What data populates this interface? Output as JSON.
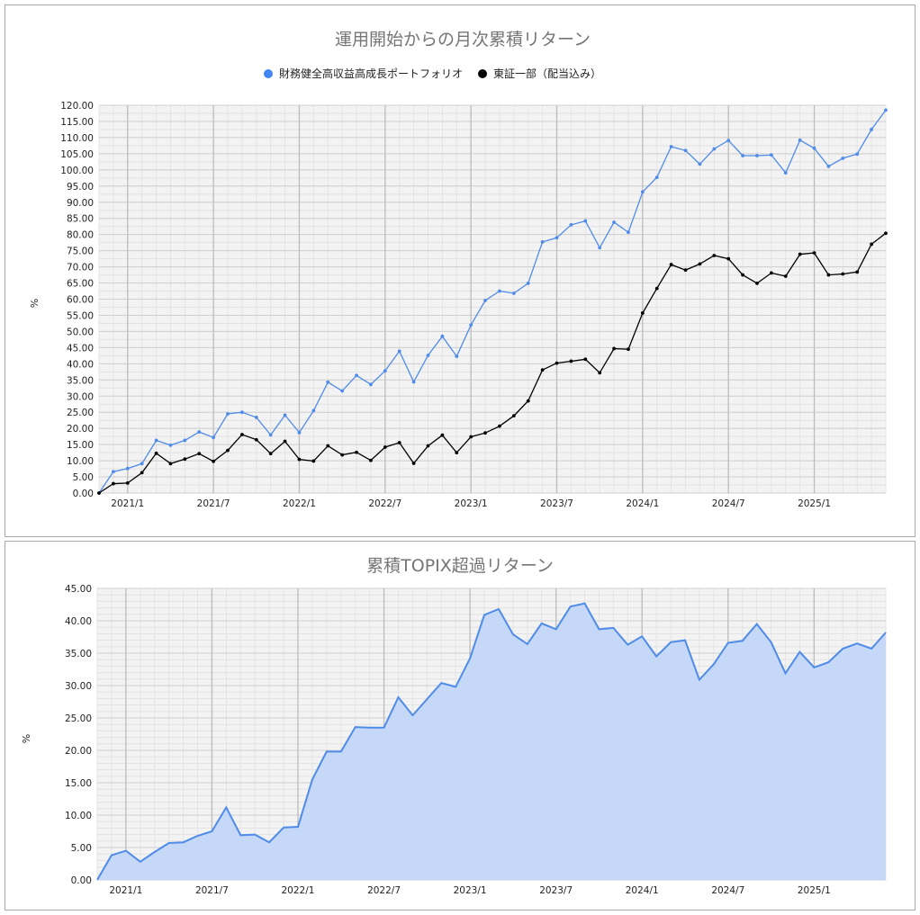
{
  "chart_data": [
    {
      "type": "line",
      "title": "運用開始からの月次累積リターン",
      "xlabel": "",
      "ylabel": "%",
      "ylim": [
        0,
        120
      ],
      "yticks": [
        "0.00",
        "5.00",
        "10.00",
        "15.00",
        "20.00",
        "25.00",
        "30.00",
        "35.00",
        "40.00",
        "45.00",
        "50.00",
        "55.00",
        "60.00",
        "65.00",
        "70.00",
        "75.00",
        "80.00",
        "85.00",
        "90.00",
        "95.00",
        "100.00",
        "105.00",
        "110.00",
        "115.00",
        "120.00"
      ],
      "xticks": [
        "2021/1",
        "2021/7",
        "2022/1",
        "2022/7",
        "2023/1",
        "2023/7",
        "2024/1",
        "2024/7",
        "2025/1"
      ],
      "x": [
        "2020/11",
        "2020/12",
        "2021/1",
        "2021/2",
        "2021/3",
        "2021/4",
        "2021/5",
        "2021/6",
        "2021/7",
        "2021/8",
        "2021/9",
        "2021/10",
        "2021/11",
        "2021/12",
        "2022/1",
        "2022/2",
        "2022/3",
        "2022/4",
        "2022/5",
        "2022/6",
        "2022/7",
        "2022/8",
        "2022/9",
        "2022/10",
        "2022/11",
        "2022/12",
        "2023/1",
        "2023/2",
        "2023/3",
        "2023/4",
        "2023/5",
        "2023/6",
        "2023/7",
        "2023/8",
        "2023/9",
        "2023/10",
        "2023/11",
        "2023/12",
        "2024/1",
        "2024/2",
        "2024/3",
        "2024/4",
        "2024/5",
        "2024/6",
        "2024/7",
        "2024/8",
        "2024/9",
        "2024/10",
        "2024/11",
        "2024/12",
        "2025/1",
        "2025/2",
        "2025/3",
        "2025/4",
        "2025/5",
        "2025/6"
      ],
      "legend_position": "top",
      "grid": true,
      "series": [
        {
          "name": "財務健全高収益高成長ポートフォリオ",
          "color": "#4f8be8",
          "values": [
            0,
            6.6,
            7.6,
            9.1,
            16.3,
            14.8,
            16.3,
            18.9,
            17.2,
            24.5,
            25.0,
            23.4,
            18.0,
            24.1,
            18.7,
            25.5,
            34.3,
            31.6,
            36.4,
            33.6,
            37.8,
            43.9,
            34.4,
            42.6,
            48.5,
            42.3,
            52.0,
            59.6,
            62.5,
            61.8,
            64.9,
            77.7,
            79.0,
            83.0,
            84.2,
            75.9,
            83.8,
            80.7,
            93.2,
            97.7,
            107.2,
            106.0,
            101.8,
            106.5,
            109.1,
            104.4,
            104.4,
            104.6,
            99.1,
            109.2,
            106.7,
            101.1,
            103.6,
            104.9,
            112.5,
            118.5
          ]
        },
        {
          "name": "東証一部（配当込み）",
          "color": "#000000",
          "values": [
            0,
            2.9,
            3.1,
            6.3,
            12.3,
            9.1,
            10.5,
            12.2,
            9.8,
            13.2,
            18.1,
            16.5,
            12.2,
            16.0,
            10.4,
            9.9,
            14.6,
            11.8,
            12.6,
            10.1,
            14.2,
            15.6,
            9.2,
            14.6,
            17.9,
            12.5,
            17.4,
            18.6,
            20.7,
            23.9,
            28.5,
            38.1,
            40.2,
            40.8,
            41.4,
            37.2,
            44.7,
            44.5,
            55.7,
            63.3,
            70.7,
            69.0,
            70.9,
            73.5,
            72.5,
            67.5,
            64.9,
            68.1,
            67.1,
            73.9,
            74.3,
            67.5,
            67.8,
            68.4,
            77.0,
            80.4
          ]
        }
      ]
    },
    {
      "type": "area",
      "title": "累積TOPIX超過リターン",
      "xlabel": "",
      "ylabel": "%",
      "ylim": [
        0,
        45
      ],
      "yticks": [
        "0.00",
        "5.00",
        "10.00",
        "15.00",
        "20.00",
        "25.00",
        "30.00",
        "35.00",
        "40.00",
        "45.00"
      ],
      "xticks": [
        "2021/1",
        "2021/7",
        "2022/1",
        "2022/7",
        "2023/1",
        "2023/7",
        "2024/1",
        "2024/7",
        "2025/1"
      ],
      "x": [
        "2020/11",
        "2020/12",
        "2021/1",
        "2021/2",
        "2021/3",
        "2021/4",
        "2021/5",
        "2021/6",
        "2021/7",
        "2021/8",
        "2021/9",
        "2021/10",
        "2021/11",
        "2021/12",
        "2022/1",
        "2022/2",
        "2022/3",
        "2022/4",
        "2022/5",
        "2022/6",
        "2022/7",
        "2022/8",
        "2022/9",
        "2022/10",
        "2022/11",
        "2022/12",
        "2023/1",
        "2023/2",
        "2023/3",
        "2023/4",
        "2023/5",
        "2023/6",
        "2023/7",
        "2023/8",
        "2023/9",
        "2023/10",
        "2023/11",
        "2023/12",
        "2024/1",
        "2024/2",
        "2024/3",
        "2024/4",
        "2024/5",
        "2024/6",
        "2024/7",
        "2024/8",
        "2024/9",
        "2024/10",
        "2024/11",
        "2024/12",
        "2025/1",
        "2025/2",
        "2025/3",
        "2025/4",
        "2025/5",
        "2025/6"
      ],
      "grid": true,
      "series": [
        {
          "name": "",
          "color": "#4f8be8",
          "fill": "#c5d8f7",
          "values": [
            0,
            3.8,
            4.5,
            2.8,
            4.3,
            5.7,
            5.8,
            6.8,
            7.5,
            11.2,
            6.9,
            7.0,
            5.8,
            8.1,
            8.2,
            15.5,
            19.8,
            19.8,
            23.6,
            23.5,
            23.5,
            28.2,
            25.4,
            27.9,
            30.4,
            29.8,
            34.2,
            40.9,
            41.8,
            37.9,
            36.4,
            39.6,
            38.7,
            42.2,
            42.7,
            38.7,
            38.9,
            36.3,
            37.6,
            34.5,
            36.7,
            37.0,
            30.9,
            33.3,
            36.6,
            36.9,
            39.5,
            36.7,
            31.9,
            35.2,
            32.8,
            33.6,
            35.7,
            36.5,
            35.7,
            38.2
          ]
        }
      ]
    }
  ]
}
